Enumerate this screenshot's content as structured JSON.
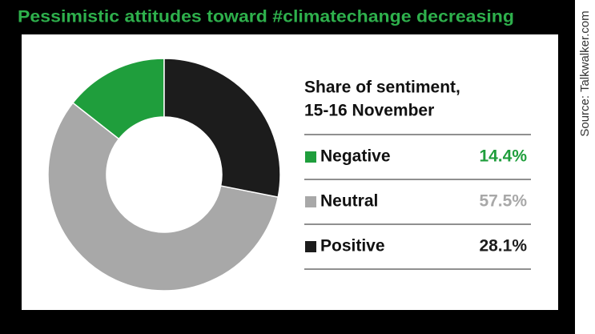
{
  "chart_data": {
    "type": "donut",
    "title": "Pessimistic attitudes toward #climatechange decreasing",
    "legend_title": [
      "Share of sentiment,",
      "15-16 November"
    ],
    "source": "Source: Talkwalker.com",
    "categories": [
      "Negative",
      "Neutral",
      "Positive"
    ],
    "values": [
      14.4,
      57.5,
      28.1
    ],
    "value_labels": [
      "14.4%",
      "57.5%",
      "28.1%"
    ],
    "colors": [
      "#1f9e3c",
      "#a8a8a8",
      "#1c1c1c"
    ]
  }
}
